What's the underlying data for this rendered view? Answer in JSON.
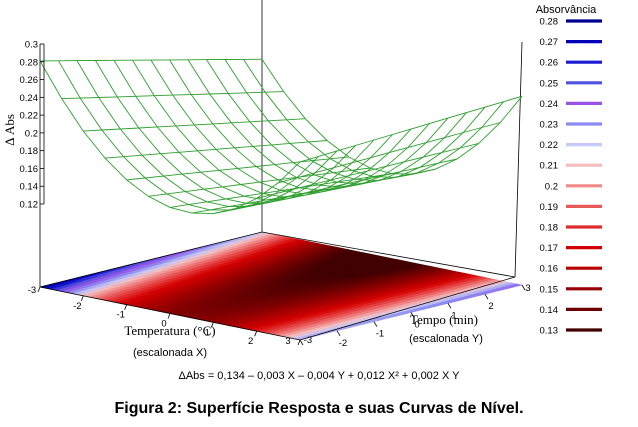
{
  "chart_data": {
    "type": "surface",
    "title": "",
    "zlabel": "Δ Abs",
    "z_ticks": [
      "0.3",
      "0.28",
      "0.26",
      "0.24",
      "0.22",
      "0.2",
      "0.18",
      "0.16",
      "0.14",
      "0.12"
    ],
    "x_axis": {
      "label": "Temperatura (°C)",
      "sublabel": "(escalonada X)",
      "ticks": [
        "-3",
        "-2",
        "-1",
        "0",
        "1",
        "2",
        "3"
      ],
      "range": [
        -3,
        3
      ]
    },
    "y_axis": {
      "label": "Tempo (min)",
      "sublabel": "(escalonada Y)",
      "ticks": [
        "-3",
        "-2",
        "-1",
        "0",
        "1",
        "2",
        "3"
      ],
      "range": [
        -3,
        3
      ]
    },
    "model": {
      "intercept": 0.134,
      "x": -0.003,
      "y": -0.004,
      "x2": 0.012,
      "xy": 0.002
    },
    "equation_text": "ΔAbs = 0,134 – 0,003 X – 0,004 Y + 0,012 X² + 0,002 X Y",
    "legend": {
      "title": "Absorvância",
      "levels": [
        {
          "label": "0.28",
          "color": "#00008f"
        },
        {
          "label": "0.27",
          "color": "#0000b8"
        },
        {
          "label": "0.26",
          "color": "#1a1ad0"
        },
        {
          "label": "0.25",
          "color": "#5252e0"
        },
        {
          "label": "0.24",
          "color": "#9a52e8"
        },
        {
          "label": "0.23",
          "color": "#8c8cf0"
        },
        {
          "label": "0.22",
          "color": "#c6c6f7"
        },
        {
          "label": "0.21",
          "color": "#f5bcbc"
        },
        {
          "label": "0.2",
          "color": "#f08a8a"
        },
        {
          "label": "0.19",
          "color": "#e85a5a"
        },
        {
          "label": "0.18",
          "color": "#e02c2c"
        },
        {
          "label": "0.17",
          "color": "#d40000"
        },
        {
          "label": "0.16",
          "color": "#b80000"
        },
        {
          "label": "0.15",
          "color": "#960000"
        },
        {
          "label": "0.14",
          "color": "#700000"
        },
        {
          "label": "0.13",
          "color": "#420000"
        }
      ]
    },
    "surface_color": "#2e9e2e"
  },
  "caption": "Figura 2: Superfície Resposta e suas Curvas de Nível."
}
